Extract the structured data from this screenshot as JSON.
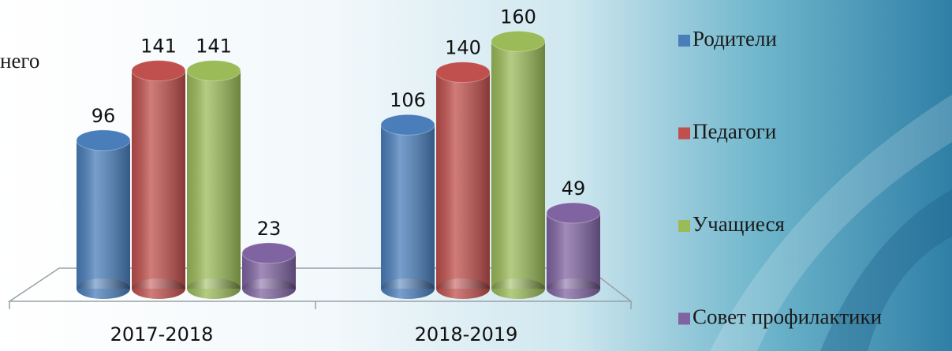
{
  "chart_data": {
    "type": "bar3d",
    "annotation": "него",
    "categories": [
      "2017-2018",
      "2018-2019"
    ],
    "series": [
      {
        "name": "Родители",
        "color": "#4a7ebb",
        "values": [
          96,
          106
        ]
      },
      {
        "name": "Педагоги",
        "color": "#c0504d",
        "values": [
          141,
          140
        ]
      },
      {
        "name": "Учащиеся",
        "color": "#9bbb59",
        "values": [
          141,
          160
        ]
      },
      {
        "name": "Совет профилактики",
        "color": "#8064a2",
        "values": [
          23,
          49
        ]
      }
    ],
    "legend": "right"
  }
}
